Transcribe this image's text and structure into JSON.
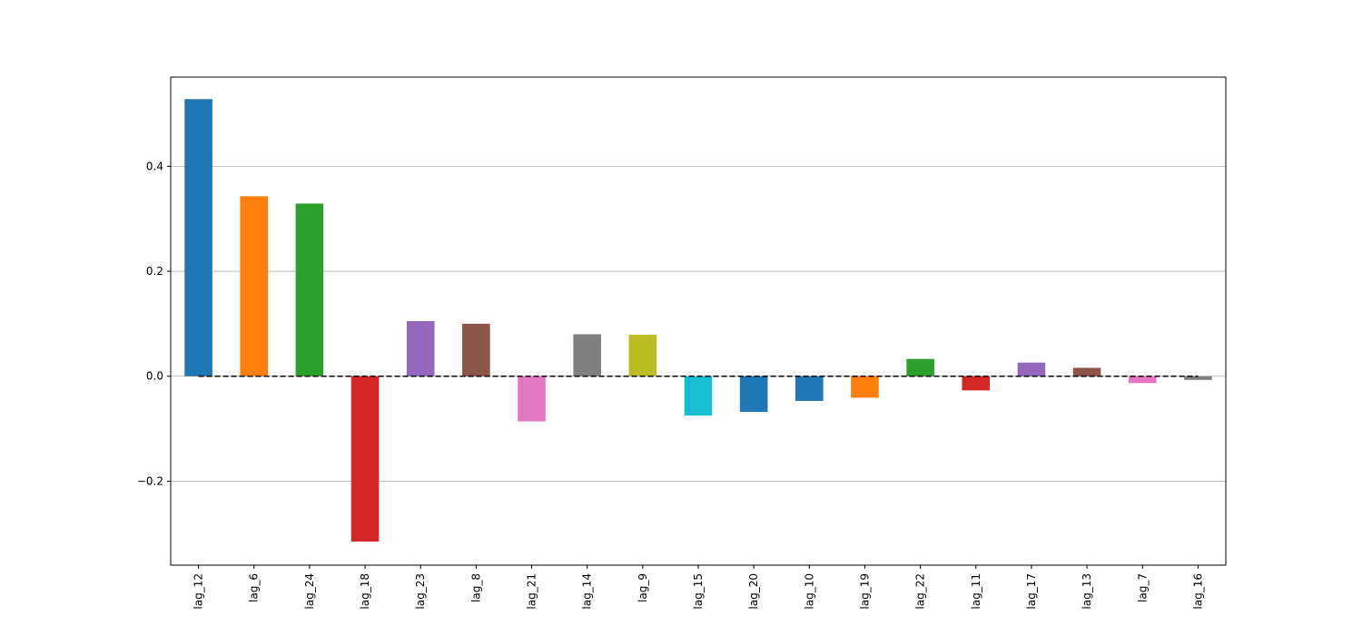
{
  "chart_data": {
    "type": "bar",
    "title": "",
    "xlabel": "",
    "ylabel": "",
    "categories": [
      "lag_12",
      "lag_6",
      "lag_24",
      "lag_18",
      "lag_23",
      "lag_8",
      "lag_21",
      "lag_14",
      "lag_9",
      "lag_15",
      "lag_20",
      "lag_10",
      "lag_19",
      "lag_22",
      "lag_11",
      "lag_17",
      "lag_13",
      "lag_7",
      "lag_16"
    ],
    "values": [
      0.528,
      0.343,
      0.329,
      -0.315,
      0.105,
      0.1,
      -0.086,
      0.08,
      0.079,
      -0.075,
      -0.068,
      -0.047,
      -0.041,
      0.033,
      -0.027,
      0.026,
      0.016,
      -0.013,
      -0.007
    ],
    "colors": [
      "#1f77b4",
      "#ff7f0e",
      "#2ca02c",
      "#d62728",
      "#9467bd",
      "#8c564b",
      "#e377c2",
      "#7f7f7f",
      "#bcbd22",
      "#17becf",
      "#1f77b4",
      "#1f77b4",
      "#ff7f0e",
      "#2ca02c",
      "#d62728",
      "#9467bd",
      "#8c564b",
      "#e377c2",
      "#7f7f7f"
    ],
    "ylim": [
      -0.36,
      0.57
    ],
    "yticks": [
      -0.2,
      0.0,
      0.2,
      0.4
    ],
    "ytick_labels": [
      "−0.2",
      "0.0",
      "0.2",
      "0.4"
    ],
    "grid": "y",
    "reference_line": {
      "y": 0.0,
      "style": "dashed",
      "color": "#000000"
    },
    "legend": "none"
  }
}
